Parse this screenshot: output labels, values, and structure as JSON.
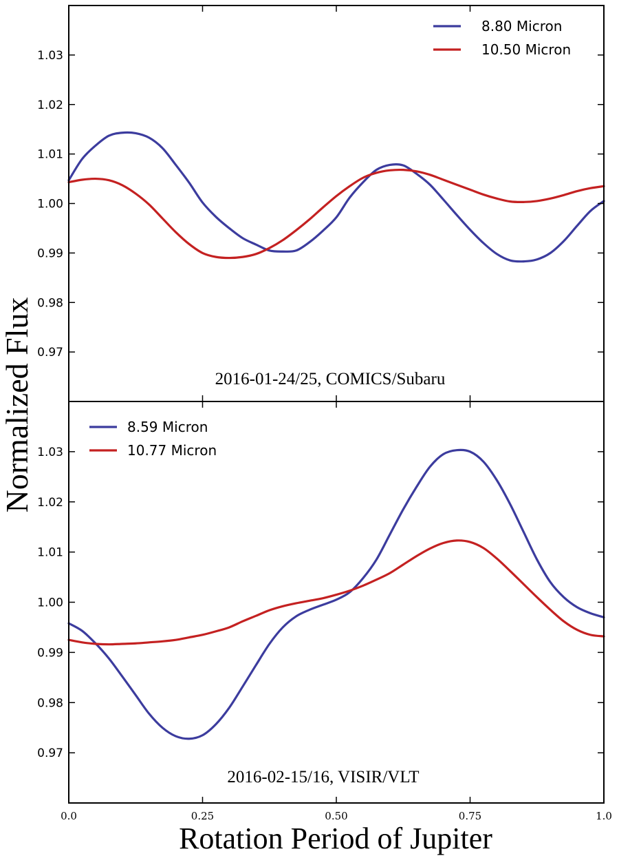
{
  "figure": {
    "ylabel": "Normalized Flux",
    "xlabel": "Rotation Period of Jupiter"
  },
  "chart_data": [
    {
      "type": "line",
      "annotation": "2016-01-24/25, COMICS/Subaru",
      "xlim": [
        0.0,
        1.0
      ],
      "ylim": [
        0.96,
        1.04
      ],
      "yticks": [
        "1.03",
        "1.02",
        "1.01",
        "1.00",
        "0.99",
        "0.98",
        "0.97"
      ],
      "ytick_values": [
        1.03,
        1.02,
        1.01,
        1.0,
        0.99,
        0.98,
        0.97
      ],
      "xticks": [],
      "legend_position": "top-right",
      "series": [
        {
          "name": "8.80 Micron",
          "color": "#3c3c9e",
          "x": [
            0.0,
            0.025,
            0.05,
            0.075,
            0.1,
            0.125,
            0.15,
            0.175,
            0.2,
            0.225,
            0.25,
            0.275,
            0.3,
            0.325,
            0.35,
            0.375,
            0.4,
            0.425,
            0.45,
            0.475,
            0.5,
            0.525,
            0.55,
            0.575,
            0.6,
            0.625,
            0.65,
            0.675,
            0.7,
            0.725,
            0.75,
            0.775,
            0.8,
            0.825,
            0.85,
            0.875,
            0.9,
            0.925,
            0.95,
            0.975,
            1.0
          ],
          "y": [
            1.0047,
            1.009,
            1.0117,
            1.0137,
            1.0143,
            1.0142,
            1.0133,
            1.0112,
            1.0078,
            1.0042,
            1.0002,
            0.9973,
            0.995,
            0.993,
            0.9917,
            0.9905,
            0.9903,
            0.9905,
            0.9922,
            0.9945,
            0.9972,
            1.0012,
            1.0043,
            1.0068,
            1.0078,
            1.0077,
            1.006,
            1.0038,
            1.0008,
            0.9977,
            0.9947,
            0.992,
            0.9898,
            0.9885,
            0.9883,
            0.9887,
            0.99,
            0.9924,
            0.9955,
            0.9985,
            1.0005
          ]
        },
        {
          "name": "10.50 Micron",
          "color": "#c42121",
          "x": [
            0.0,
            0.025,
            0.05,
            0.075,
            0.1,
            0.125,
            0.15,
            0.175,
            0.2,
            0.225,
            0.25,
            0.275,
            0.3,
            0.325,
            0.35,
            0.375,
            0.4,
            0.425,
            0.45,
            0.475,
            0.5,
            0.525,
            0.55,
            0.575,
            0.6,
            0.625,
            0.65,
            0.675,
            0.7,
            0.725,
            0.75,
            0.775,
            0.8,
            0.825,
            0.85,
            0.875,
            0.9,
            0.925,
            0.95,
            0.975,
            1.0
          ],
          "y": [
            1.0043,
            1.0048,
            1.005,
            1.0047,
            1.0037,
            1.002,
            0.9998,
            0.997,
            0.9942,
            0.9918,
            0.99,
            0.9892,
            0.989,
            0.9892,
            0.9898,
            0.991,
            0.9926,
            0.9946,
            0.9968,
            0.9992,
            1.0015,
            1.0035,
            1.0052,
            1.0062,
            1.0067,
            1.0068,
            1.0065,
            1.0058,
            1.0048,
            1.0038,
            1.0028,
            1.0018,
            1.001,
            1.0004,
            1.0003,
            1.0005,
            1.001,
            1.0017,
            1.0025,
            1.0031,
            1.0035
          ]
        }
      ]
    },
    {
      "type": "line",
      "annotation": "2016-02-15/16, VISIR/VLT",
      "xlim": [
        0.0,
        1.0
      ],
      "ylim": [
        0.96,
        1.04
      ],
      "yticks": [
        "1.03",
        "1.02",
        "1.01",
        "1.00",
        "0.99",
        "0.98",
        "0.97"
      ],
      "ytick_values": [
        1.03,
        1.02,
        1.01,
        1.0,
        0.99,
        0.98,
        0.97
      ],
      "xticks": [
        "0.0",
        "0.25",
        "0.50",
        "0.75",
        "1.0"
      ],
      "xtick_values": [
        0.0,
        0.25,
        0.5,
        0.75,
        1.0
      ],
      "legend_position": "top-left",
      "series": [
        {
          "name": "8.59 Micron",
          "color": "#3c3c9e",
          "x": [
            0.0,
            0.025,
            0.05,
            0.075,
            0.1,
            0.125,
            0.15,
            0.175,
            0.2,
            0.225,
            0.25,
            0.275,
            0.3,
            0.325,
            0.35,
            0.375,
            0.4,
            0.425,
            0.45,
            0.475,
            0.5,
            0.525,
            0.55,
            0.575,
            0.6,
            0.625,
            0.65,
            0.675,
            0.7,
            0.725,
            0.75,
            0.775,
            0.8,
            0.825,
            0.85,
            0.875,
            0.9,
            0.925,
            0.95,
            0.975,
            1.0
          ],
          "y": [
            0.9958,
            0.9943,
            0.9918,
            0.9888,
            0.9852,
            0.9815,
            0.9778,
            0.975,
            0.9733,
            0.9728,
            0.9735,
            0.9757,
            0.979,
            0.9832,
            0.9875,
            0.9917,
            0.995,
            0.9972,
            0.9985,
            0.9995,
            1.0005,
            1.002,
            1.0048,
            1.0085,
            1.0135,
            1.0185,
            1.023,
            1.027,
            1.0295,
            1.0303,
            1.03,
            1.028,
            1.0243,
            1.0195,
            1.014,
            1.0085,
            1.004,
            1.001,
            0.999,
            0.9978,
            0.997
          ]
        },
        {
          "name": "10.77 Micron",
          "color": "#c42121",
          "x": [
            0.0,
            0.025,
            0.05,
            0.075,
            0.1,
            0.125,
            0.15,
            0.175,
            0.2,
            0.225,
            0.25,
            0.275,
            0.3,
            0.325,
            0.35,
            0.375,
            0.4,
            0.425,
            0.45,
            0.475,
            0.5,
            0.525,
            0.55,
            0.575,
            0.6,
            0.625,
            0.65,
            0.675,
            0.7,
            0.725,
            0.75,
            0.775,
            0.8,
            0.825,
            0.85,
            0.875,
            0.9,
            0.925,
            0.95,
            0.975,
            1.0
          ],
          "y": [
            0.9925,
            0.992,
            0.9917,
            0.9916,
            0.9917,
            0.9918,
            0.992,
            0.9922,
            0.9925,
            0.993,
            0.9935,
            0.9942,
            0.995,
            0.9962,
            0.9973,
            0.9984,
            0.9992,
            0.9998,
            1.0003,
            1.0008,
            1.0015,
            1.0023,
            1.0033,
            1.0045,
            1.0058,
            1.0075,
            1.0092,
            1.0107,
            1.0118,
            1.0123,
            1.012,
            1.0108,
            1.0087,
            1.0062,
            1.0036,
            1.001,
            0.9985,
            0.9962,
            0.9945,
            0.9935,
            0.9932
          ]
        }
      ]
    }
  ]
}
